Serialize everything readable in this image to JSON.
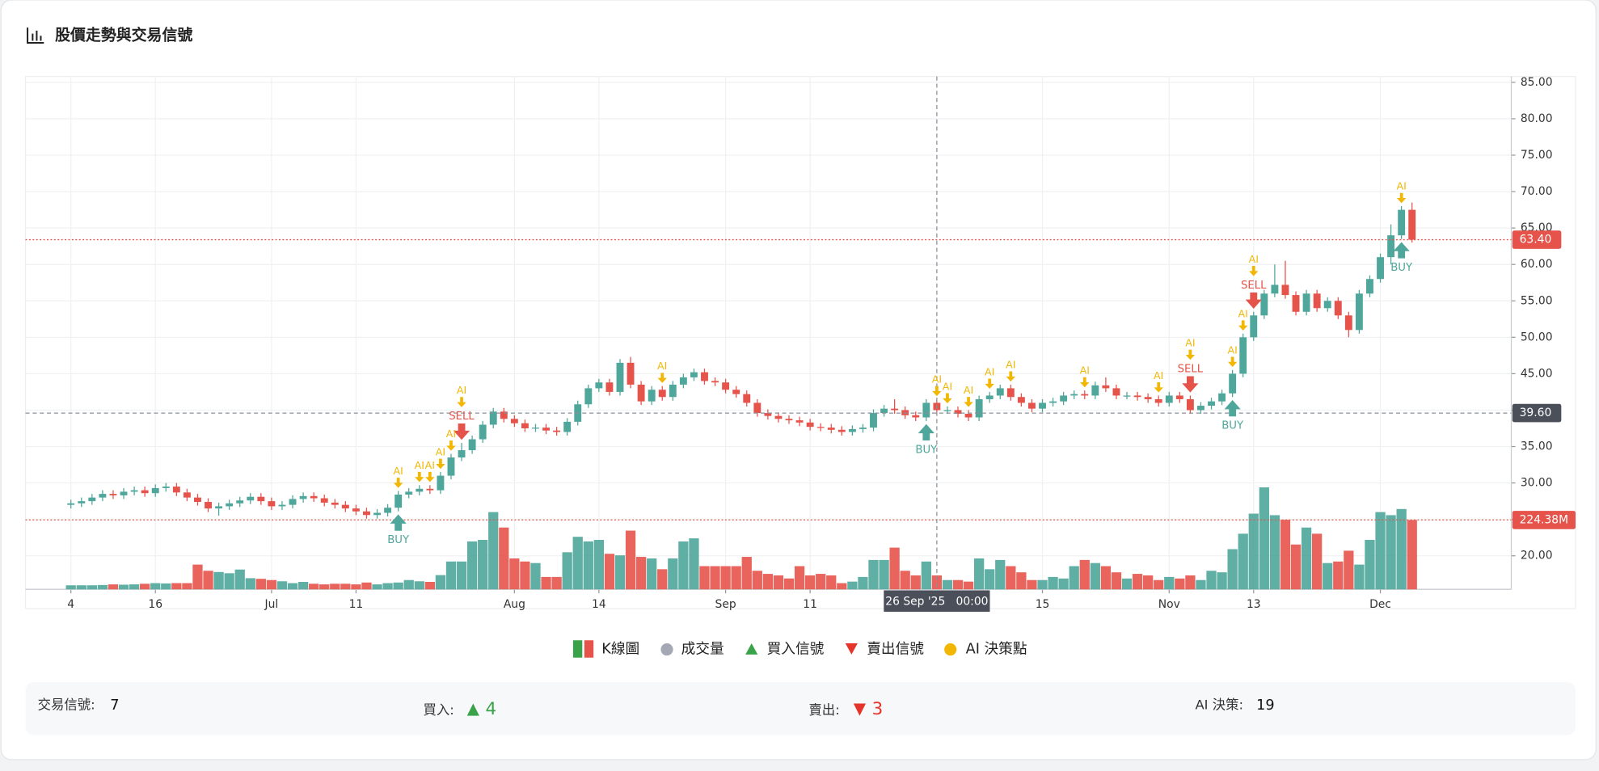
{
  "title": "股價走勢與交易信號",
  "chart_data": {
    "type": "candlestick",
    "up_color": "#4fa69b",
    "down_color": "#e5534b",
    "ai_color": "#f2b705",
    "xlim": [
      -4.3,
      136.4
    ],
    "xticks": [
      {
        "value": 0,
        "label": "4"
      },
      {
        "value": 8,
        "label": "16"
      },
      {
        "value": 19,
        "label": "Jul"
      },
      {
        "value": 27,
        "label": "11"
      },
      {
        "value": 42,
        "label": "Aug"
      },
      {
        "value": 50,
        "label": "14"
      },
      {
        "value": 62,
        "label": "Sep"
      },
      {
        "value": 70,
        "label": "11"
      },
      {
        "value": 92,
        "label": "15"
      },
      {
        "value": 104,
        "label": "Nov"
      },
      {
        "value": 112,
        "label": "13"
      },
      {
        "value": 124,
        "label": "Dec"
      }
    ],
    "ylim": [
      15.4,
      85.8
    ],
    "yticks": [
      {
        "value": 20,
        "label": "20.00"
      },
      {
        "value": 25,
        "label": "25.00"
      },
      {
        "value": 30,
        "label": "30.00"
      },
      {
        "value": 35,
        "label": "35.00"
      },
      {
        "value": 40,
        "label": "40.00"
      },
      {
        "value": 45,
        "label": "45.00"
      },
      {
        "value": 50,
        "label": "50.00"
      },
      {
        "value": 55,
        "label": "55.00"
      },
      {
        "value": 60,
        "label": "60.00"
      },
      {
        "value": 65,
        "label": "65.00"
      },
      {
        "value": 70,
        "label": "70.00"
      },
      {
        "value": 75,
        "label": "75.00"
      },
      {
        "value": 80,
        "label": "80.00"
      },
      {
        "value": 85,
        "label": "85.00"
      }
    ],
    "volume_ylim": [
      0,
      1660
    ],
    "grid": true,
    "candles": [
      [
        27.0,
        27.7,
        26.5,
        27.2
      ],
      [
        27.2,
        28.0,
        26.7,
        27.5
      ],
      [
        27.5,
        28.5,
        27.0,
        28.0
      ],
      [
        28.0,
        29.0,
        27.5,
        28.5
      ],
      [
        28.5,
        29.0,
        27.8,
        28.3
      ],
      [
        28.3,
        29.3,
        27.8,
        28.8
      ],
      [
        28.8,
        29.5,
        28.3,
        29.0
      ],
      [
        29.0,
        29.5,
        28.1,
        28.6
      ],
      [
        28.6,
        29.8,
        28.1,
        29.3
      ],
      [
        29.3,
        30.0,
        28.8,
        29.5
      ],
      [
        29.5,
        30.0,
        28.2,
        28.7
      ],
      [
        28.7,
        29.2,
        27.5,
        28.0
      ],
      [
        28.0,
        28.5,
        26.9,
        27.4
      ],
      [
        27.4,
        27.9,
        26.0,
        26.5
      ],
      [
        26.5,
        27.3,
        25.5,
        26.8
      ],
      [
        26.8,
        27.7,
        26.3,
        27.2
      ],
      [
        27.2,
        28.1,
        26.7,
        27.6
      ],
      [
        27.6,
        28.6,
        27.1,
        28.1
      ],
      [
        28.1,
        28.6,
        27.0,
        27.5
      ],
      [
        27.5,
        28.0,
        26.3,
        26.8
      ],
      [
        26.8,
        27.5,
        26.3,
        27.0
      ],
      [
        27.0,
        28.3,
        26.5,
        27.8
      ],
      [
        27.8,
        28.7,
        27.3,
        28.2
      ],
      [
        28.2,
        28.7,
        27.4,
        27.9
      ],
      [
        27.9,
        28.4,
        26.8,
        27.3
      ],
      [
        27.3,
        27.8,
        26.5,
        27.0
      ],
      [
        27.0,
        27.5,
        26.0,
        26.5
      ],
      [
        26.5,
        27.0,
        25.6,
        26.1
      ],
      [
        26.1,
        26.6,
        25.1,
        25.6
      ],
      [
        25.6,
        26.4,
        25.1,
        25.9
      ],
      [
        25.9,
        27.1,
        25.4,
        26.6
      ],
      [
        26.6,
        28.9,
        26.1,
        28.4
      ],
      [
        28.4,
        29.3,
        27.9,
        28.8
      ],
      [
        28.8,
        29.7,
        28.3,
        29.2
      ],
      [
        29.2,
        29.7,
        28.5,
        29.0
      ],
      [
        29.0,
        31.5,
        28.5,
        31.0
      ],
      [
        31.0,
        34.0,
        30.5,
        33.5
      ],
      [
        33.5,
        35.5,
        33.0,
        34.5
      ],
      [
        34.5,
        36.5,
        34.0,
        36.0
      ],
      [
        36.0,
        38.5,
        35.5,
        38.0
      ],
      [
        38.0,
        40.3,
        37.5,
        39.8
      ],
      [
        39.8,
        40.3,
        38.3,
        38.8
      ],
      [
        38.8,
        39.3,
        37.7,
        38.2
      ],
      [
        38.2,
        38.7,
        37.0,
        37.5
      ],
      [
        37.5,
        38.1,
        37.0,
        37.6
      ],
      [
        37.6,
        38.1,
        36.7,
        37.2
      ],
      [
        37.2,
        37.7,
        36.5,
        37.0
      ],
      [
        37.0,
        38.9,
        36.5,
        38.4
      ],
      [
        38.4,
        41.3,
        37.9,
        40.8
      ],
      [
        40.8,
        43.5,
        40.3,
        43.0
      ],
      [
        43.0,
        44.3,
        42.5,
        43.8
      ],
      [
        43.8,
        44.3,
        42.0,
        42.5
      ],
      [
        42.5,
        47.0,
        42.0,
        46.5
      ],
      [
        46.5,
        47.3,
        43.0,
        43.5
      ],
      [
        43.5,
        44.0,
        40.7,
        41.2
      ],
      [
        41.2,
        43.3,
        40.7,
        42.8
      ],
      [
        42.8,
        43.3,
        41.3,
        41.8
      ],
      [
        41.8,
        44.0,
        41.3,
        43.5
      ],
      [
        43.5,
        45.0,
        43.0,
        44.5
      ],
      [
        44.5,
        45.7,
        44.0,
        45.2
      ],
      [
        45.2,
        45.7,
        43.5,
        44.0
      ],
      [
        44.0,
        44.5,
        43.3,
        43.8
      ],
      [
        43.8,
        44.3,
        42.3,
        42.8
      ],
      [
        42.8,
        43.3,
        41.7,
        42.2
      ],
      [
        42.2,
        42.7,
        40.5,
        41.0
      ],
      [
        41.0,
        41.5,
        39.1,
        39.6
      ],
      [
        39.6,
        40.1,
        38.7,
        39.2
      ],
      [
        39.2,
        39.7,
        38.3,
        38.8
      ],
      [
        38.8,
        39.3,
        38.1,
        38.6
      ],
      [
        38.6,
        39.1,
        37.8,
        38.3
      ],
      [
        38.3,
        38.8,
        37.2,
        37.7
      ],
      [
        37.7,
        38.2,
        37.1,
        37.6
      ],
      [
        37.6,
        38.1,
        36.8,
        37.3
      ],
      [
        37.3,
        37.8,
        36.5,
        37.0
      ],
      [
        37.0,
        37.9,
        36.5,
        37.4
      ],
      [
        37.4,
        38.1,
        36.9,
        37.6
      ],
      [
        37.6,
        40.1,
        37.1,
        39.6
      ],
      [
        39.6,
        40.7,
        39.1,
        40.2
      ],
      [
        40.2,
        41.5,
        39.5,
        40.0
      ],
      [
        40.0,
        40.5,
        38.8,
        39.3
      ],
      [
        39.3,
        39.8,
        38.5,
        39.0
      ],
      [
        39.0,
        41.5,
        38.5,
        41.0
      ],
      [
        41.0,
        41.5,
        39.5,
        40.0
      ],
      [
        40.0,
        40.5,
        39.5,
        40.0
      ],
      [
        40.0,
        40.5,
        39.0,
        39.5
      ],
      [
        39.5,
        40.0,
        38.5,
        39.0
      ],
      [
        39.0,
        42.0,
        38.5,
        41.5
      ],
      [
        41.5,
        42.5,
        41.0,
        42.0
      ],
      [
        42.0,
        43.5,
        41.5,
        43.0
      ],
      [
        43.0,
        43.5,
        41.3,
        41.8
      ],
      [
        41.8,
        42.3,
        40.5,
        41.0
      ],
      [
        41.0,
        41.5,
        39.7,
        40.2
      ],
      [
        40.2,
        41.5,
        39.7,
        41.0
      ],
      [
        41.0,
        41.7,
        40.5,
        41.2
      ],
      [
        41.2,
        42.5,
        40.7,
        42.0
      ],
      [
        42.0,
        42.7,
        41.5,
        42.2
      ],
      [
        42.2,
        42.7,
        41.5,
        42.0
      ],
      [
        42.0,
        43.9,
        41.5,
        43.4
      ],
      [
        43.4,
        44.5,
        42.5,
        43.0
      ],
      [
        43.0,
        43.5,
        41.5,
        42.0
      ],
      [
        42.0,
        42.5,
        41.5,
        42.0
      ],
      [
        42.0,
        42.5,
        41.3,
        41.8
      ],
      [
        41.8,
        42.3,
        41.0,
        41.5
      ],
      [
        41.5,
        42.0,
        40.5,
        41.0
      ],
      [
        41.0,
        42.5,
        40.5,
        42.0
      ],
      [
        42.0,
        42.5,
        41.0,
        41.5
      ],
      [
        41.5,
        42.0,
        39.5,
        40.0
      ],
      [
        40.0,
        41.1,
        39.5,
        40.6
      ],
      [
        40.6,
        41.7,
        40.1,
        41.2
      ],
      [
        41.2,
        42.8,
        40.7,
        42.3
      ],
      [
        42.3,
        45.5,
        41.8,
        45.0
      ],
      [
        45.0,
        50.5,
        44.5,
        50.0
      ],
      [
        50.0,
        53.5,
        49.5,
        53.0
      ],
      [
        53.0,
        56.5,
        52.5,
        56.0
      ],
      [
        56.0,
        60.0,
        55.5,
        57.2
      ],
      [
        57.2,
        60.5,
        55.3,
        55.8
      ],
      [
        55.8,
        56.3,
        53.0,
        53.5
      ],
      [
        53.5,
        56.5,
        53.0,
        56.0
      ],
      [
        56.0,
        56.5,
        53.5,
        54.0
      ],
      [
        54.0,
        55.5,
        53.5,
        55.0
      ],
      [
        55.0,
        55.5,
        52.5,
        53.0
      ],
      [
        53.0,
        53.5,
        50.0,
        51.0
      ],
      [
        51.0,
        56.5,
        50.5,
        56.0
      ],
      [
        56.0,
        58.5,
        55.5,
        58.0
      ],
      [
        58.0,
        61.5,
        57.5,
        61.0
      ],
      [
        61.0,
        65.5,
        60.0,
        64.0
      ],
      [
        64.0,
        68.0,
        63.5,
        67.5
      ],
      [
        67.5,
        68.5,
        63.0,
        63.4
      ]
    ],
    "volume": [
      13,
      13,
      13,
      14,
      16,
      15,
      16,
      18,
      20,
      19,
      20,
      20,
      80,
      60,
      56,
      52,
      64,
      36,
      34,
      30,
      26,
      20,
      24,
      18,
      16,
      18,
      18,
      16,
      22,
      16,
      20,
      22,
      30,
      26,
      24,
      46,
      90,
      90,
      155,
      160,
      250,
      200,
      100,
      90,
      85,
      40,
      40,
      120,
      170,
      155,
      160,
      115,
      110,
      190,
      105,
      100,
      65,
      100,
      155,
      165,
      75,
      75,
      75,
      75,
      105,
      60,
      50,
      45,
      35,
      75,
      45,
      50,
      45,
      20,
      25,
      40,
      95,
      95,
      135,
      60,
      45,
      90,
      45,
      30,
      30,
      25,
      100,
      65,
      95,
      75,
      55,
      30,
      30,
      40,
      35,
      75,
      95,
      85,
      75,
      55,
      35,
      50,
      45,
      30,
      40,
      35,
      45,
      30,
      60,
      55,
      130,
      180,
      245,
      330,
      240,
      225,
      145,
      200,
      180,
      85,
      90,
      125,
      80,
      160,
      250,
      240,
      260,
      224.38
    ],
    "buy_label": "BUY",
    "sell_label": "SELL",
    "ai_label": "AI",
    "buy_signals": [
      31,
      81,
      110,
      126
    ],
    "sell_signals": [
      37,
      106,
      112
    ],
    "ai_points": [
      31,
      33,
      34,
      35,
      36,
      37,
      56,
      82,
      83,
      85,
      87,
      89,
      96,
      103,
      106,
      110,
      111,
      112,
      126
    ],
    "last_price": {
      "value": 63.4,
      "label": "63.40"
    },
    "last_volume": {
      "value": 224.38,
      "label": "224.38M"
    },
    "crosshair": {
      "x": 82,
      "price": {
        "value": 39.6,
        "label": "39.60"
      },
      "date_label": "26 Sep '25   00:00"
    },
    "legend": [
      "K線圖",
      "成交量",
      "買入信號",
      "賣出信號",
      "AI 決策點"
    ]
  },
  "summary": [
    {
      "label": "交易信號:",
      "value": 7
    },
    {
      "label": "買入:",
      "value": 4
    },
    {
      "label": "賣出:",
      "value": 3
    },
    {
      "label": "AI 決策:",
      "value": 19
    }
  ]
}
